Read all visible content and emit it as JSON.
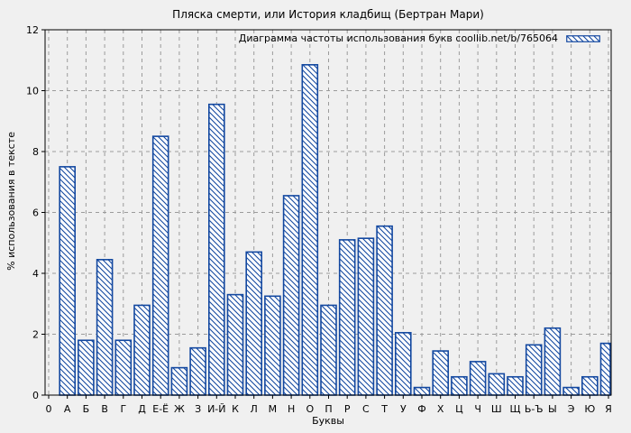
{
  "colors": {
    "background": "#f0f0f0",
    "bar_blue": "#1348a0",
    "bar_fill": "#ffffff",
    "grid_gray": "#9b9b9b",
    "axis_black": "#000000"
  },
  "chart_data": {
    "type": "bar",
    "title": "Пляска смерти, или История кладбищ (Бертран Мари)",
    "legend": "Диаграмма частоты использования букв coollib.net/b/765064",
    "legend_position": "top-right-inside",
    "legend_swatch": "hatched-bar-sample",
    "xlabel": "Буквы",
    "ylabel": "% использования в тексте",
    "ylim": [
      0,
      12
    ],
    "yticks": [
      0,
      2,
      4,
      6,
      8,
      10,
      12
    ],
    "grid": true,
    "bar_hatch": "diagonal-backslash",
    "categories": [
      "0",
      "А",
      "Б",
      "В",
      "Г",
      "Д",
      "Е-Ё",
      "Ж",
      "З",
      "И-Й",
      "К",
      "Л",
      "М",
      "Н",
      "О",
      "П",
      "Р",
      "С",
      "Т",
      "У",
      "Ф",
      "Х",
      "Ц",
      "Ч",
      "Ш",
      "Щ",
      "Ь-Ъ",
      "Ы",
      "Э",
      "Ю",
      "Я"
    ],
    "values": [
      null,
      7.5,
      1.8,
      4.45,
      1.8,
      2.95,
      8.5,
      0.9,
      1.55,
      9.55,
      3.3,
      4.7,
      3.25,
      6.55,
      10.85,
      2.95,
      5.1,
      5.15,
      5.55,
      2.05,
      0.25,
      1.45,
      0.6,
      1.1,
      0.7,
      0.6,
      1.65,
      2.2,
      0.25,
      0.6,
      1.7
    ]
  }
}
